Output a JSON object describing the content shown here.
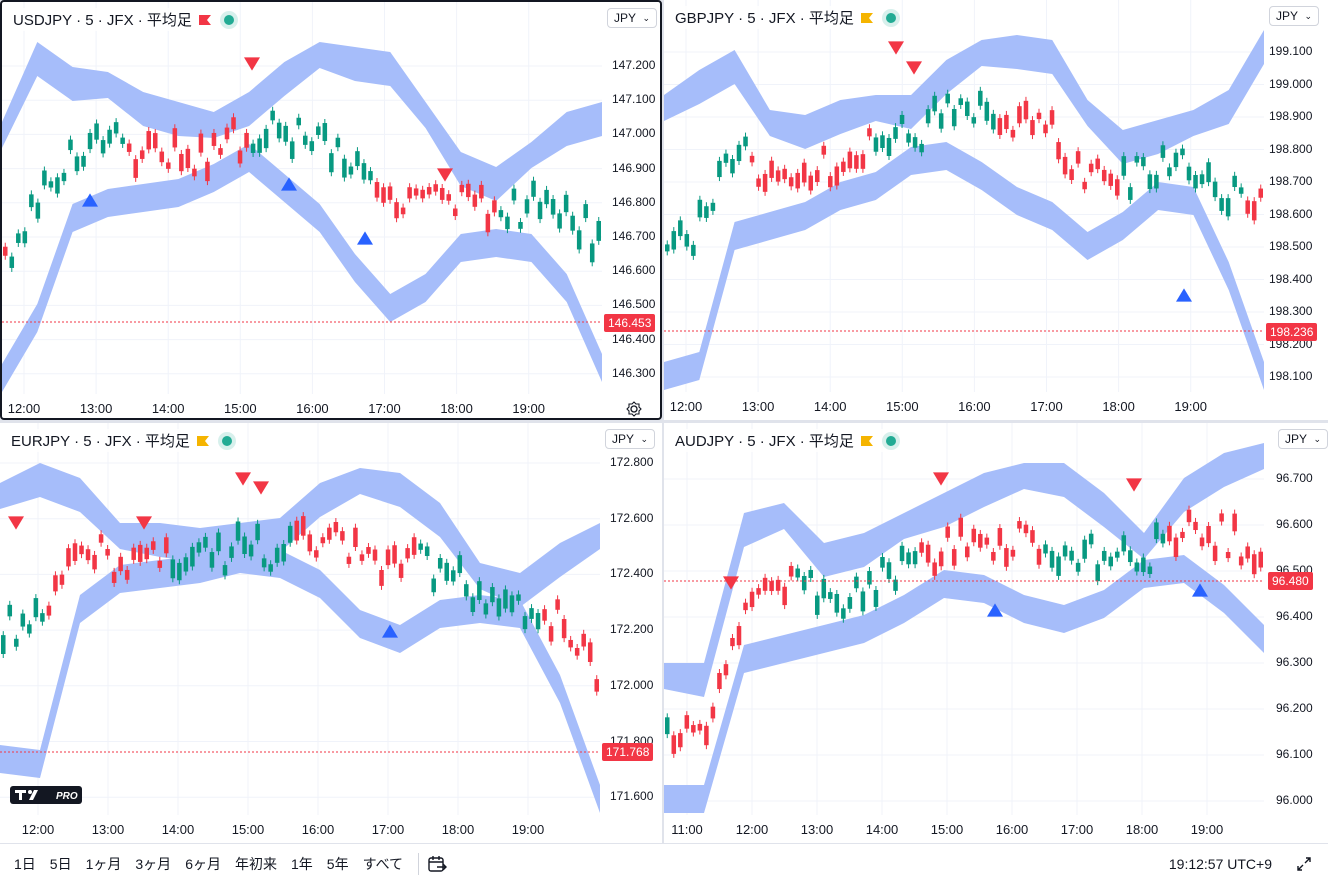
{
  "currency_label": "JPY",
  "panes": [
    {
      "id": "usdjpy",
      "title": "USDJPY · 5 · JFX · 平均足",
      "flag_color": "#f23645",
      "price_tag": "146.453",
      "y_ticks": [
        "147.200",
        "147.100",
        "147.000",
        "146.900",
        "146.800",
        "146.700",
        "146.600",
        "146.500",
        "146.400",
        "146.300"
      ],
      "x_ticks": [
        "12:00",
        "13:00",
        "14:00",
        "15:00",
        "16:00",
        "17:00",
        "18:00",
        "19:00"
      ]
    },
    {
      "id": "gbpjpy",
      "title": "GBPJPY · 5 · JFX · 平均足",
      "flag_color": "#f5b400",
      "price_tag": "198.236",
      "y_ticks": [
        "199.100",
        "199.000",
        "198.900",
        "198.800",
        "198.700",
        "198.600",
        "198.500",
        "198.400",
        "198.300",
        "198.200",
        "198.100"
      ],
      "x_ticks": [
        "12:00",
        "13:00",
        "14:00",
        "15:00",
        "16:00",
        "17:00",
        "18:00",
        "19:00"
      ]
    },
    {
      "id": "eurjpy",
      "title": "EURJPY · 5 · JFX · 平均足",
      "flag_color": "#f5b400",
      "price_tag": "171.768",
      "y_ticks": [
        "172.800",
        "172.600",
        "172.400",
        "172.200",
        "172.000",
        "171.800",
        "171.600"
      ],
      "x_ticks": [
        "12:00",
        "13:00",
        "14:00",
        "15:00",
        "16:00",
        "17:00",
        "18:00",
        "19:00"
      ]
    },
    {
      "id": "audjpy",
      "title": "AUDJPY · 5 · JFX · 平均足",
      "flag_color": "#f5b400",
      "price_tag": "96.480",
      "y_ticks": [
        "96.700",
        "96.600",
        "96.500",
        "96.400",
        "96.300",
        "96.200",
        "96.100",
        "96.000"
      ],
      "x_ticks": [
        "11:00",
        "12:00",
        "13:00",
        "14:00",
        "15:00",
        "16:00",
        "17:00",
        "18:00",
        "19:00"
      ]
    }
  ],
  "bottom_bar": {
    "ranges": [
      "1日",
      "5日",
      "1ヶ月",
      "3ヶ月",
      "6ヶ月",
      "年初来",
      "1年",
      "5年",
      "すべて"
    ],
    "clock": "19:12:57 UTC+9"
  },
  "colors": {
    "up": "#089981",
    "down": "#f23645",
    "band": "#a6bdfa",
    "marker_blue": "#2962ff",
    "marker_red": "#f23645"
  },
  "icons": [
    "flag-icon",
    "live-dot-icon",
    "chevron-down-icon",
    "settings-icon",
    "tradingview-logo",
    "goto-date-icon",
    "fullscreen-icon"
  ]
}
